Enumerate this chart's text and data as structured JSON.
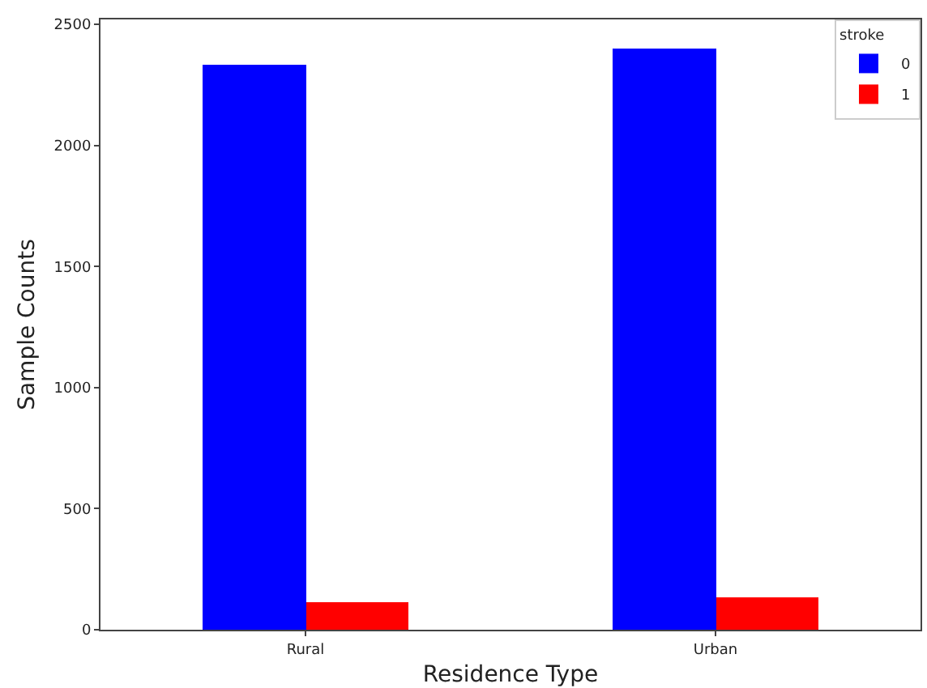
{
  "chart_data": {
    "type": "bar",
    "xlabel": "Residence Type",
    "ylabel": "Sample Counts",
    "legend_title": "stroke",
    "categories": [
      "Rural",
      "Urban"
    ],
    "series": [
      {
        "name": "0",
        "color": "#0000ff",
        "values": [
          2336,
          2400
        ]
      },
      {
        "name": "1",
        "color": "#ff0000",
        "values": [
          115,
          135
        ]
      }
    ],
    "ylim": [
      0,
      2520
    ],
    "yticks": [
      0,
      500,
      1000,
      1500,
      2000,
      2500
    ],
    "grid": false,
    "legend": "top right"
  }
}
